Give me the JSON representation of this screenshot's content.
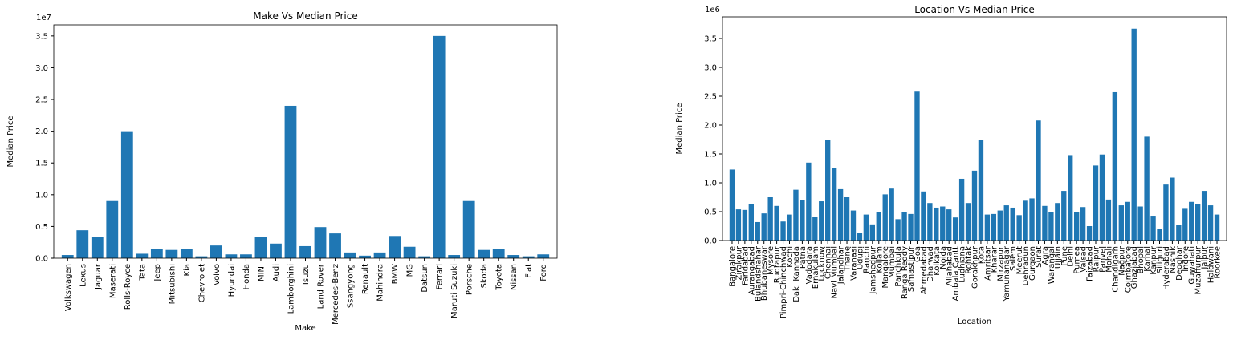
{
  "chart_data": [
    {
      "type": "bar",
      "title": "Make Vs Median Price",
      "xlabel": "Make",
      "ylabel": "Median Price",
      "offset_text": "1e7",
      "color": "#1f77b4",
      "categories": [
        "Volkswagen",
        "Lexus",
        "Jaguar",
        "Maserati",
        "Rolls-Royce",
        "Tata",
        "Jeep",
        "Mitsubishi",
        "Kia",
        "Chevrolet",
        "Volvo",
        "Hyundai",
        "Honda",
        "MINI",
        "Audi",
        "Lamborghini",
        "Isuzu",
        "Land Rover",
        "Mercedes-Benz",
        "Ssangyong",
        "Renault",
        "Mahindra",
        "BMW",
        "MG",
        "Datsun",
        "Ferrari",
        "Maruti Suzuki",
        "Porsche",
        "Skoda",
        "Toyota",
        "Nissan",
        "Fiat",
        "Ford"
      ],
      "values": [
        500000,
        4400000,
        3300000,
        9000000,
        20000000,
        700000,
        1500000,
        1300000,
        1400000,
        300000,
        2000000,
        600000,
        600000,
        3300000,
        2300000,
        24000000,
        1900000,
        4900000,
        3900000,
        900000,
        400000,
        900000,
        3500000,
        1800000,
        300000,
        35000000,
        500000,
        9000000,
        1300000,
        1500000,
        500000,
        300000,
        600000
      ],
      "ylim": [
        0,
        36750000
      ],
      "yticks": [
        {
          "value": 0,
          "label": "0.0"
        },
        {
          "value": 5000000,
          "label": "0.5"
        },
        {
          "value": 10000000,
          "label": "1.0"
        },
        {
          "value": 15000000,
          "label": "1.5"
        },
        {
          "value": 20000000,
          "label": "2.0"
        },
        {
          "value": 25000000,
          "label": "2.5"
        },
        {
          "value": 30000000,
          "label": "3.0"
        },
        {
          "value": 35000000,
          "label": "3.5"
        }
      ]
    },
    {
      "type": "bar",
      "title": "Location Vs Median Price",
      "xlabel": "Location",
      "ylabel": "Median Price",
      "offset_text": "1e6",
      "color": "#1f77b4",
      "categories": [
        "Bangalore",
        "Zirakpur",
        "Faridabad",
        "Aurangabad",
        "Bulandshahar",
        "Bhubaneswar",
        "Mysore",
        "Rudrapur",
        "Pimpri-Chinchwad",
        "Kochi",
        "Dak. Kannada",
        "Patna",
        "Vadodara",
        "Ernakulam",
        "Lucknow",
        "Chennai",
        "Navi Mumbai",
        "Jalandhar",
        "Thane",
        "Varanasi",
        "Udupi",
        "Ranchi",
        "Jamshedpur",
        "Kollam",
        "Mangalore",
        "Mumbai",
        "Panchkula",
        "Ranga Reddy",
        "Samastipur",
        "Goa",
        "Ahmedabad",
        "Dharwad",
        "Kolkata",
        "Noida",
        "Allahabad",
        "Ambala Cantt",
        "Ludhiana",
        "Rohtak",
        "Gorakhpur",
        "Kota",
        "Amritsar",
        "Kharar",
        "Mirzapur",
        "Yamunanagar",
        "Salem",
        "Meerut",
        "Dehradun",
        "Gurgaon",
        "Surat",
        "Agra",
        "Warangal",
        "Ujjain",
        "Pune",
        "Delhi",
        "Purnea",
        "Valsad",
        "Faizabad",
        "Raipur",
        "Panvel",
        "Mohali",
        "Chandigarh",
        "Nagpur",
        "Coimbatore",
        "Ghaziabad",
        "Bhopal",
        "Karnal",
        "Kanpur",
        "Siliguri",
        "Hyderabad",
        "Nashik",
        "Deoghar",
        "Indore",
        "Guwahati",
        "Muzaffurpur",
        "Jaipur",
        "Haldwani",
        "Roorkee"
      ],
      "values": [
        1230000,
        540000,
        530000,
        630000,
        320000,
        470000,
        750000,
        600000,
        330000,
        450000,
        880000,
        700000,
        1350000,
        410000,
        680000,
        1750000,
        1250000,
        890000,
        750000,
        520000,
        130000,
        450000,
        280000,
        500000,
        800000,
        900000,
        370000,
        490000,
        460000,
        2580000,
        850000,
        650000,
        570000,
        590000,
        540000,
        400000,
        1070000,
        650000,
        1210000,
        1750000,
        450000,
        460000,
        520000,
        610000,
        570000,
        440000,
        690000,
        730000,
        2080000,
        600000,
        500000,
        650000,
        860000,
        1480000,
        500000,
        580000,
        250000,
        1300000,
        1490000,
        710000,
        2570000,
        610000,
        670000,
        3670000,
        590000,
        1800000,
        430000,
        200000,
        970000,
        1090000,
        270000,
        550000,
        670000,
        630000,
        860000,
        610000,
        450000
      ],
      "ylim": [
        0,
        3875000
      ],
      "yticks": [
        {
          "value": 0,
          "label": "0.0"
        },
        {
          "value": 500000,
          "label": "0.5"
        },
        {
          "value": 1000000,
          "label": "1.0"
        },
        {
          "value": 1500000,
          "label": "1.5"
        },
        {
          "value": 2000000,
          "label": "2.0"
        },
        {
          "value": 2500000,
          "label": "2.5"
        },
        {
          "value": 3000000,
          "label": "3.0"
        },
        {
          "value": 3500000,
          "label": "3.5"
        }
      ]
    }
  ]
}
